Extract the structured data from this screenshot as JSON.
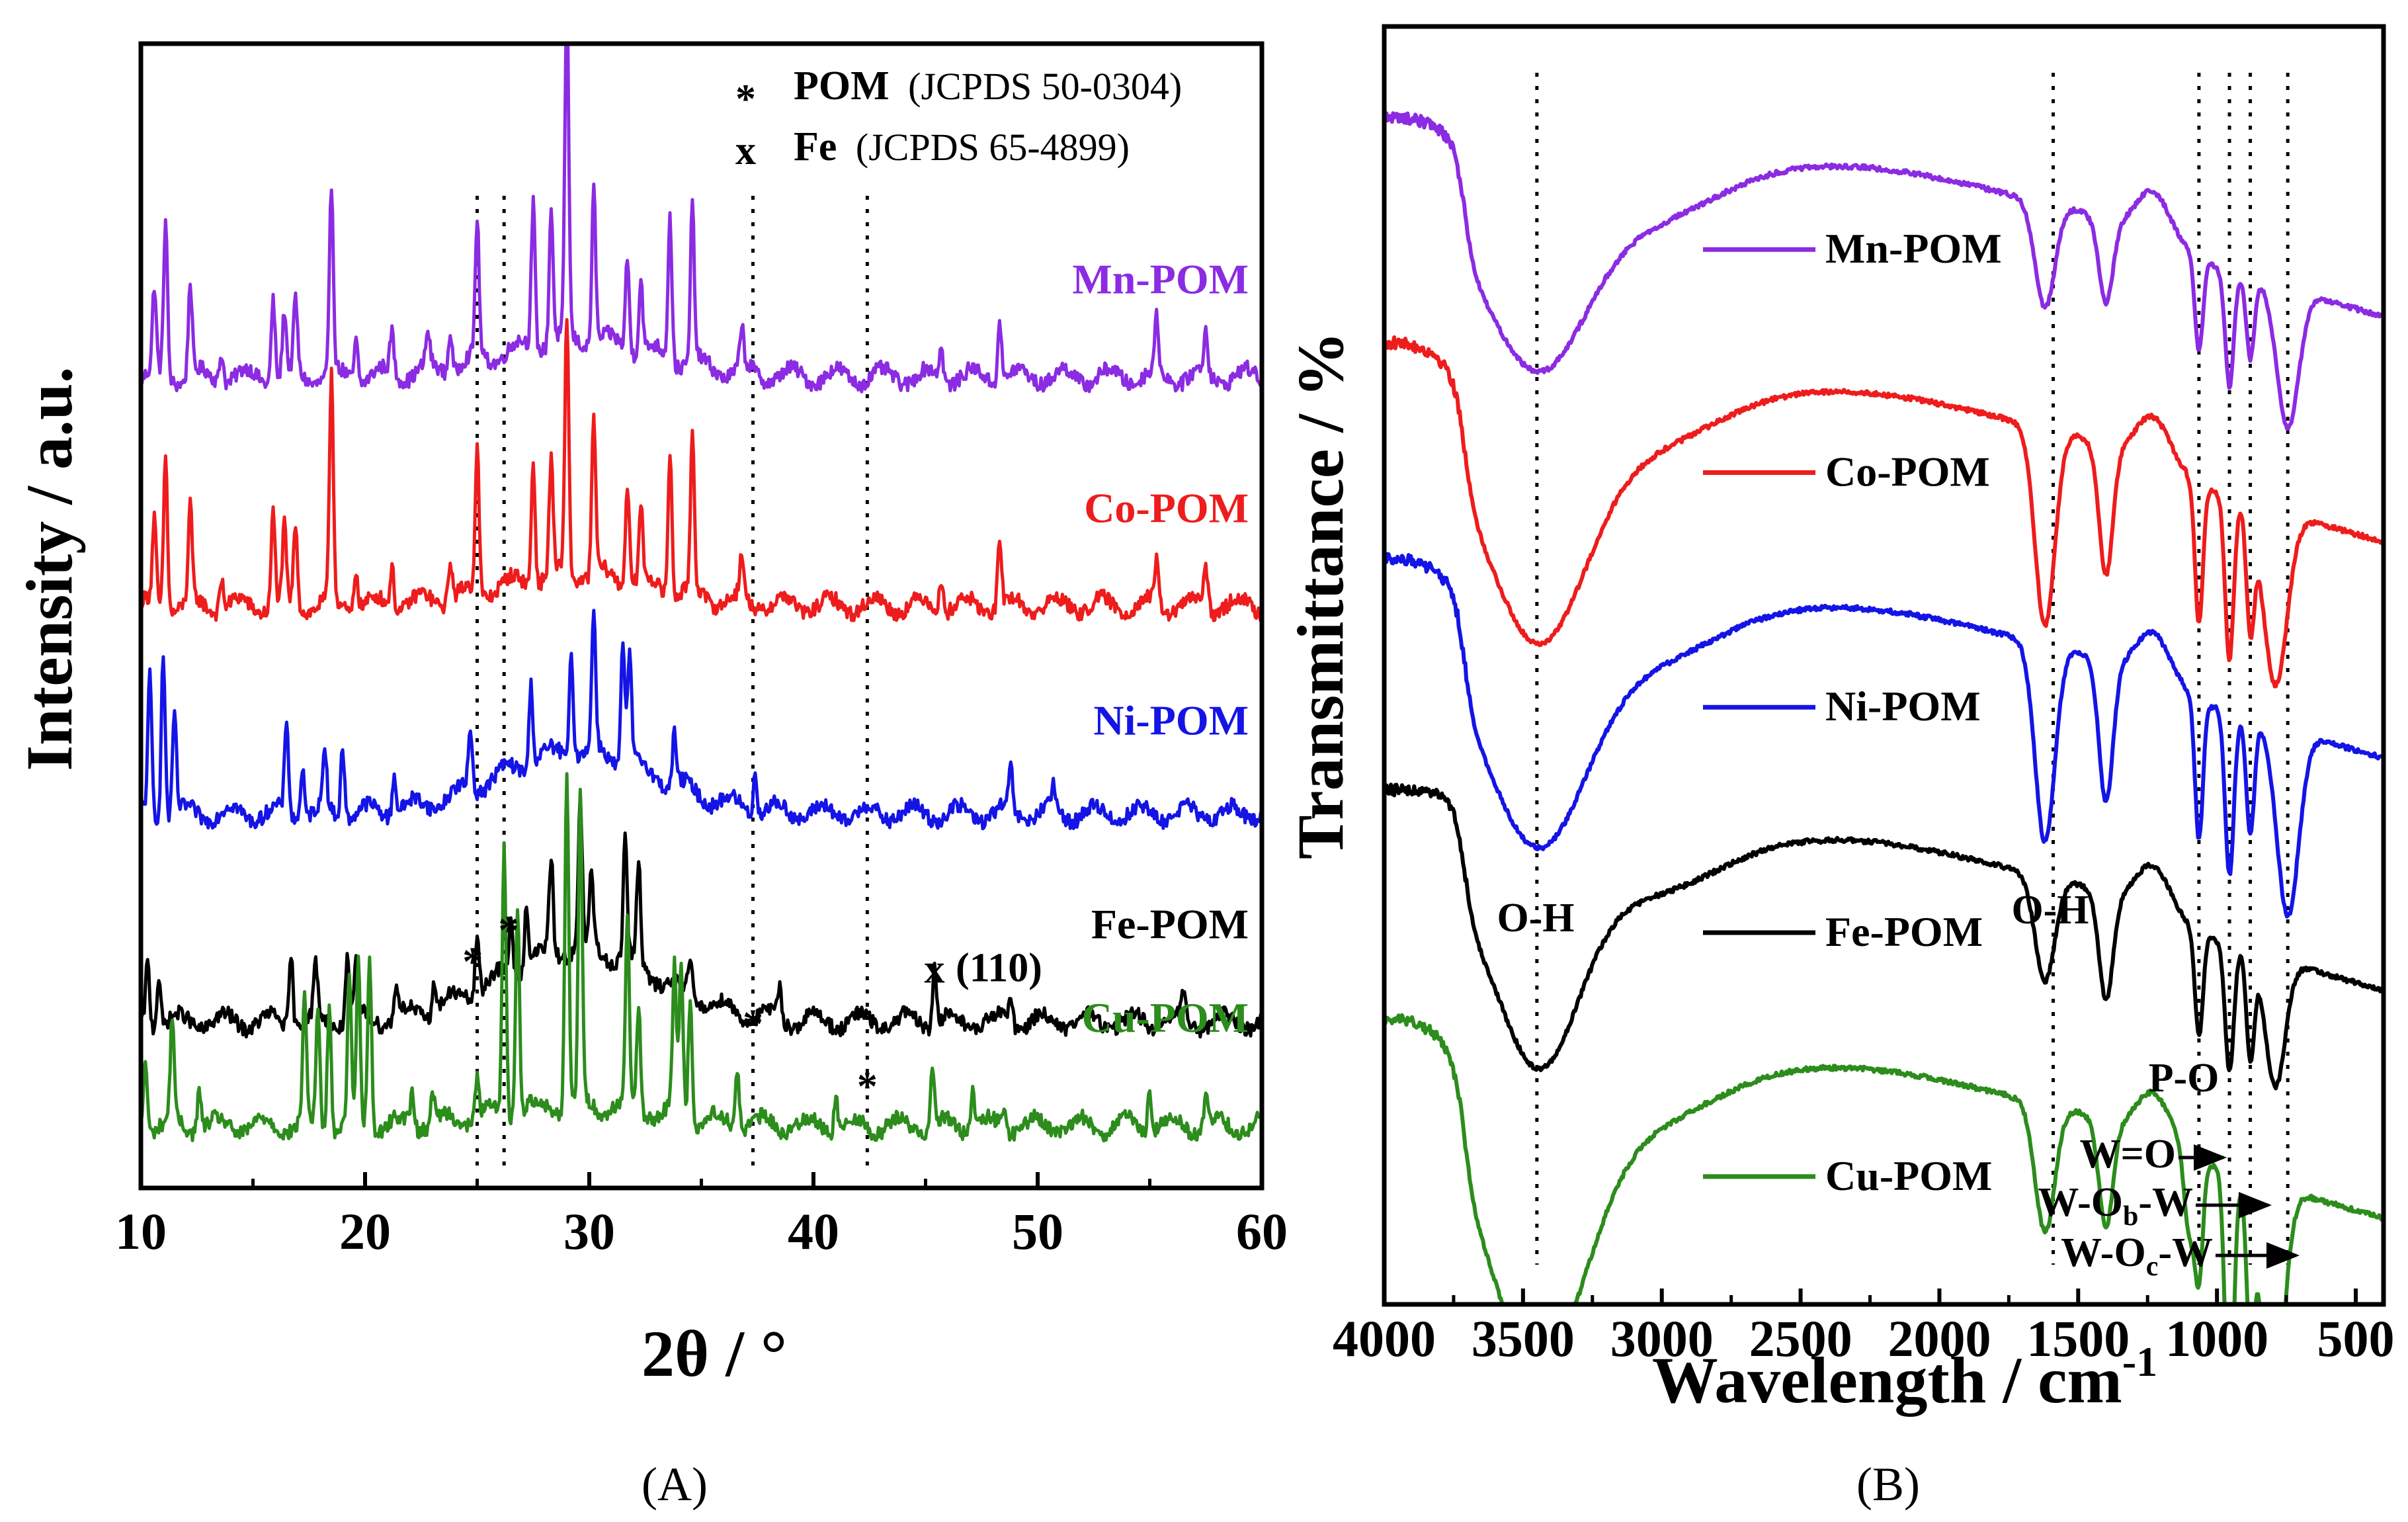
{
  "panels": {
    "a": {
      "caption": "(A)",
      "xlabel": "2θ / °",
      "ylabel": "Intensity / a.u.",
      "x_ticks": [
        "10",
        "20",
        "30",
        "40",
        "50",
        "60"
      ],
      "legend": [
        {
          "symbol": "*",
          "bold": "POM",
          "text": "(JCPDS 50-0304)"
        },
        {
          "symbol": "x",
          "bold": "Fe",
          "text": "(JCPDS 65-4899)"
        }
      ],
      "marker_labels": {
        "pom": "*",
        "fe": "x",
        "fe_plane": "(110)"
      }
    },
    "b": {
      "caption": "(B)",
      "xlabel": "Wavelength / cm",
      "xlabel_sup": "-1",
      "ylabel": "Transmittance / %",
      "x_ticks": [
        "4000",
        "3500",
        "3000",
        "2500",
        "2000",
        "1500",
        "1000",
        "500"
      ],
      "band_labels": {
        "oh_left": "O-H",
        "oh_right": "O-H",
        "po": "P-O",
        "wo": "W=O",
        "wob_pre": "W-O",
        "wob_sub": "b",
        "wob_post": "-W",
        "woc_pre": "W-O",
        "woc_sub": "c",
        "woc_post": "-W"
      }
    }
  },
  "chart_data": [
    {
      "type": "line",
      "title": "(A)",
      "xlabel": "2θ / °",
      "ylabel": "Intensity / a.u.",
      "xlim": [
        10,
        60
      ],
      "ylim": [
        -0.3,
        5.2
      ],
      "grid": false,
      "legend": [
        "* POM (JCPDS 50-0304)",
        "x Fe (JCPDS 65-4899)"
      ],
      "reference_lines": [
        25.0,
        26.2,
        37.3,
        42.4
      ],
      "markers": [
        {
          "symbol": "*",
          "x": 24.8,
          "y": 0.85
        },
        {
          "symbol": "*",
          "x": 26.4,
          "y": 1.0
        },
        {
          "symbol": "*",
          "x": 37.3,
          "y": 0.55
        },
        {
          "symbol": "*",
          "x": 42.4,
          "y": 0.25
        },
        {
          "symbol": "x",
          "x": 45.4,
          "y": 0.75,
          "label": "(110)"
        }
      ],
      "series": [
        {
          "name": "Mn-POM",
          "color": "#8b2be2",
          "baseline": 3.6,
          "label_y": 4.0,
          "peaks": [
            [
              10.6,
              0.4
            ],
            [
              11.1,
              0.75
            ],
            [
              12.2,
              0.45
            ],
            [
              13.6,
              0.15
            ],
            [
              15.9,
              0.4
            ],
            [
              16.4,
              0.3
            ],
            [
              16.9,
              0.35
            ],
            [
              18.5,
              0.9
            ],
            [
              19.6,
              0.2
            ],
            [
              21.2,
              0.2
            ],
            [
              22.8,
              0.15
            ],
            [
              23.8,
              0.2
            ],
            [
              25.0,
              0.65
            ],
            [
              27.5,
              0.7
            ],
            [
              28.3,
              0.65
            ],
            [
              29.0,
              1.6
            ],
            [
              30.2,
              0.75
            ],
            [
              31.7,
              0.45
            ],
            [
              32.3,
              0.35
            ],
            [
              33.6,
              0.7
            ],
            [
              34.6,
              0.75
            ],
            [
              36.8,
              0.2
            ],
            [
              45.7,
              0.15
            ],
            [
              48.3,
              0.3
            ],
            [
              55.3,
              0.25
            ],
            [
              57.5,
              0.2
            ]
          ],
          "hump": 0.18
        },
        {
          "name": "Co-POM",
          "color": "#ee1c1c",
          "baseline": 2.5,
          "label_y": 2.9,
          "peaks": [
            [
              10.6,
              0.4
            ],
            [
              11.1,
              0.75
            ],
            [
              12.2,
              0.45
            ],
            [
              13.6,
              0.15
            ],
            [
              15.9,
              0.45
            ],
            [
              16.4,
              0.35
            ],
            [
              16.9,
              0.4
            ],
            [
              18.5,
              1.1
            ],
            [
              19.6,
              0.2
            ],
            [
              21.2,
              0.2
            ],
            [
              23.8,
              0.2
            ],
            [
              25.0,
              0.7
            ],
            [
              27.5,
              0.6
            ],
            [
              28.3,
              0.55
            ],
            [
              29.0,
              1.25
            ],
            [
              30.2,
              0.75
            ],
            [
              31.7,
              0.5
            ],
            [
              32.3,
              0.35
            ],
            [
              33.6,
              0.7
            ],
            [
              34.6,
              0.75
            ],
            [
              36.8,
              0.2
            ],
            [
              45.7,
              0.15
            ],
            [
              48.3,
              0.3
            ],
            [
              55.3,
              0.2
            ],
            [
              57.5,
              0.2
            ]
          ],
          "hump": 0.15
        },
        {
          "name": "Ni-POM",
          "color": "#1414e6",
          "baseline": 1.5,
          "label_y": 1.88,
          "peaks": [
            [
              10.4,
              0.65
            ],
            [
              11.0,
              0.8
            ],
            [
              11.5,
              0.5
            ],
            [
              16.5,
              0.45
            ],
            [
              17.2,
              0.25
            ],
            [
              18.2,
              0.3
            ],
            [
              19.0,
              0.35
            ],
            [
              21.3,
              0.2
            ],
            [
              24.7,
              0.3
            ],
            [
              27.4,
              0.4
            ],
            [
              29.2,
              0.5
            ],
            [
              30.2,
              0.65
            ],
            [
              31.5,
              0.6
            ],
            [
              31.8,
              0.55
            ],
            [
              33.8,
              0.25
            ],
            [
              37.4,
              0.2
            ],
            [
              48.8,
              0.2
            ],
            [
              50.7,
              0.1
            ]
          ],
          "hump": 0.3
        },
        {
          "name": "Fe-POM",
          "color": "#000000",
          "baseline": 0.5,
          "label_y": 0.9,
          "peaks": [
            [
              10.3,
              0.3
            ],
            [
              10.8,
              0.25
            ],
            [
              16.7,
              0.35
            ],
            [
              17.8,
              0.25
            ],
            [
              19.2,
              0.3
            ],
            [
              19.6,
              0.25
            ],
            [
              21.4,
              0.15
            ],
            [
              23.1,
              0.15
            ],
            [
              25.0,
              0.3
            ],
            [
              26.5,
              0.25
            ],
            [
              27.2,
              0.3
            ],
            [
              28.3,
              0.45
            ],
            [
              29.6,
              0.7
            ],
            [
              30.1,
              0.35
            ],
            [
              31.6,
              0.6
            ],
            [
              32.2,
              0.5
            ],
            [
              34.5,
              0.2
            ],
            [
              38.5,
              0.15
            ],
            [
              45.4,
              0.3
            ],
            [
              48.8,
              0.15
            ],
            [
              56.5,
              0.1
            ]
          ],
          "hump": 0.35
        },
        {
          "name": "Cu-POM",
          "color": "#2c8c1c",
          "baseline": 0.0,
          "label_y": 0.45,
          "peaks": [
            [
              10.2,
              0.35
            ],
            [
              11.4,
              0.5
            ],
            [
              12.6,
              0.2
            ],
            [
              17.3,
              0.6
            ],
            [
              17.9,
              0.55
            ],
            [
              18.4,
              0.6
            ],
            [
              19.3,
              0.7
            ],
            [
              19.7,
              0.75
            ],
            [
              20.2,
              0.85
            ],
            [
              22.1,
              0.15
            ],
            [
              23.0,
              0.15
            ],
            [
              25.0,
              0.2
            ],
            [
              26.2,
              1.3
            ],
            [
              26.8,
              1.0
            ],
            [
              29.0,
              1.6
            ],
            [
              29.6,
              1.5
            ],
            [
              31.7,
              0.9
            ],
            [
              32.2,
              0.5
            ],
            [
              33.8,
              0.7
            ],
            [
              34.1,
              0.75
            ],
            [
              34.5,
              0.6
            ],
            [
              36.6,
              0.3
            ],
            [
              41.0,
              0.15
            ],
            [
              45.3,
              0.3
            ],
            [
              47.1,
              0.2
            ],
            [
              48.5,
              0.1
            ],
            [
              55.0,
              0.2
            ],
            [
              57.5,
              0.15
            ]
          ],
          "hump": 0.1
        }
      ]
    },
    {
      "type": "line",
      "title": "(B)",
      "xlabel": "Wavelength / cm-1",
      "ylabel": "Transmittance / %",
      "xlim": [
        4000,
        400
      ],
      "ylim": [
        -0.6,
        4.9
      ],
      "grid": false,
      "reference_lines": [
        3450,
        1590,
        1065,
        955,
        880,
        745
      ],
      "series": [
        {
          "name": "Mn-POM",
          "color": "#8b2be2",
          "top": 4.5,
          "label_y": 3.94,
          "bands": [
            [
              3440,
              0.65,
              240
            ],
            [
              1620,
              0.45,
              50
            ],
            [
              1400,
              0.35,
              35
            ],
            [
              1065,
              0.4,
              20
            ],
            [
              955,
              0.5,
              22
            ],
            [
              880,
              0.35,
              20
            ],
            [
              745,
              0.6,
              55
            ]
          ]
        },
        {
          "name": "Co-POM",
          "color": "#ee1c1c",
          "top": 3.53,
          "label_y": 2.98,
          "bands": [
            [
              3440,
              0.85,
              240
            ],
            [
              1620,
              0.85,
              50
            ],
            [
              1400,
              0.55,
              35
            ],
            [
              1065,
              0.6,
              20
            ],
            [
              955,
              0.7,
              22
            ],
            [
              880,
              0.5,
              20
            ],
            [
              790,
              0.75,
              60
            ]
          ]
        },
        {
          "name": "Ni-POM",
          "color": "#1414e6",
          "top": 2.6,
          "label_y": 1.97,
          "bands": [
            [
              3440,
              0.8,
              240
            ],
            [
              1620,
              0.85,
              50
            ],
            [
              1400,
              0.6,
              35
            ],
            [
              1065,
              0.6,
              20
            ],
            [
              955,
              0.7,
              22
            ],
            [
              880,
              0.5,
              20
            ],
            [
              745,
              0.8,
              55
            ]
          ]
        },
        {
          "name": "Fe-POM",
          "color": "#000000",
          "top": 1.6,
          "label_y": 1.0,
          "bands": [
            [
              3440,
              0.75,
              200
            ],
            [
              1620,
              0.45,
              50
            ],
            [
              1400,
              0.45,
              35
            ],
            [
              1065,
              0.45,
              20
            ],
            [
              955,
              0.55,
              22
            ],
            [
              880,
              0.45,
              20
            ],
            [
              790,
              0.55,
              50
            ]
          ]
        },
        {
          "name": "Cu-POM",
          "color": "#2c8c1c",
          "top": 0.62,
          "label_y": -0.05,
          "bands": [
            [
              3440,
              1.05,
              240
            ],
            [
              1620,
              0.55,
              50
            ],
            [
              1400,
              0.45,
              35
            ],
            [
              1100,
              0.35,
              25
            ],
            [
              1065,
              0.5,
              20
            ],
            [
              955,
              1.1,
              22
            ],
            [
              880,
              0.6,
              20
            ],
            [
              800,
              1.0,
              55
            ]
          ]
        }
      ]
    }
  ]
}
